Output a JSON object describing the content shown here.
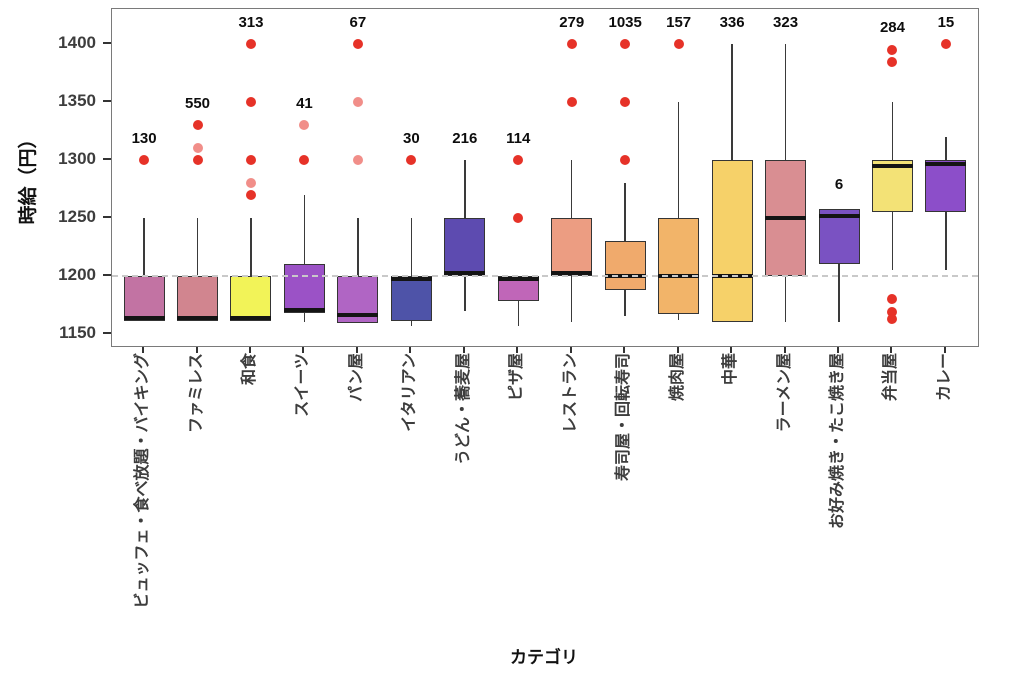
{
  "chart_data": {
    "type": "boxplot",
    "title": "",
    "xlabel": "カテゴリ",
    "ylabel": "時給（円）",
    "y_ticks": [
      1150,
      1200,
      1250,
      1300,
      1350,
      1400
    ],
    "ylim": [
      1140,
      1430
    ],
    "grid": false,
    "legend": "none",
    "reference_line": {
      "value": 1200,
      "style": "dashed",
      "color": "#c9c9c9"
    },
    "outlier_color": "#e63228",
    "box_border_color": "#353535",
    "categories": [
      {
        "label": "ビュッフェ・食べ放題・バイキング",
        "count": 130,
        "color": "#c273a3",
        "q1": 1161,
        "median": 1163,
        "q3": 1200,
        "whisker_low": 1161,
        "whisker_high": 1250,
        "outliers": [
          {
            "value": 1300,
            "light": false
          }
        ],
        "count_label_y": 1314
      },
      {
        "label": "ファミレス",
        "count": 550,
        "color": "#d1858f",
        "q1": 1161,
        "median": 1163,
        "q3": 1200,
        "whisker_low": 1161,
        "whisker_high": 1250,
        "outliers": [
          {
            "value": 1300,
            "light": false
          },
          {
            "value": 1310,
            "light": true
          },
          {
            "value": 1330,
            "light": false
          }
        ],
        "count_label_y": 1344
      },
      {
        "label": "和食",
        "count": 313,
        "color": "#f2f358",
        "q1": 1161,
        "median": 1162,
        "q3": 1200,
        "whisker_low": 1161,
        "whisker_high": 1250,
        "outliers": [
          {
            "value": 1270,
            "light": false
          },
          {
            "value": 1280,
            "light": true
          },
          {
            "value": 1300,
            "light": false
          },
          {
            "value": 1350,
            "light": false
          },
          {
            "value": 1400,
            "light": false
          }
        ],
        "count_label_y": 1414
      },
      {
        "label": "スイーツ",
        "count": 41,
        "color": "#9b52c6",
        "q1": 1168,
        "median": 1170,
        "q3": 1210,
        "whisker_low": 1160,
        "whisker_high": 1270,
        "outliers": [
          {
            "value": 1300,
            "light": false
          },
          {
            "value": 1330,
            "light": true
          }
        ],
        "count_label_y": 1344
      },
      {
        "label": "パン屋",
        "count": 67,
        "color": "#b065c4",
        "q1": 1159,
        "median": 1166,
        "q3": 1200,
        "whisker_low": 1159,
        "whisker_high": 1250,
        "outliers": [
          {
            "value": 1300,
            "light": true
          },
          {
            "value": 1350,
            "light": true
          },
          {
            "value": 1400,
            "light": false
          }
        ],
        "count_label_y": 1414
      },
      {
        "label": "イタリアン",
        "count": 30,
        "color": "#4e53a8",
        "q1": 1161,
        "median": 1198,
        "q3": 1200,
        "whisker_low": 1157,
        "whisker_high": 1250,
        "outliers": [
          {
            "value": 1300,
            "light": false
          }
        ],
        "count_label_y": 1314
      },
      {
        "label": "うどん・蕎麦屋",
        "count": 216,
        "color": "#5d4bb0",
        "q1": 1200,
        "median": 1202,
        "q3": 1250,
        "whisker_low": 1170,
        "whisker_high": 1300,
        "outliers": [],
        "count_label_y": 1314
      },
      {
        "label": "ピザ屋",
        "count": 114,
        "color": "#c066b8",
        "q1": 1178,
        "median": 1198,
        "q3": 1200,
        "whisker_low": 1157,
        "whisker_high": 1200,
        "outliers": [
          {
            "value": 1250,
            "light": false
          },
          {
            "value": 1300,
            "light": false
          }
        ],
        "count_label_y": 1314
      },
      {
        "label": "レストラン",
        "count": 279,
        "color": "#ec9d82",
        "q1": 1200,
        "median": 1202,
        "q3": 1250,
        "whisker_low": 1160,
        "whisker_high": 1300,
        "outliers": [
          {
            "value": 1350,
            "light": false
          },
          {
            "value": 1400,
            "light": false
          }
        ],
        "count_label_y": 1414
      },
      {
        "label": "寿司屋・回転寿司",
        "count": 1035,
        "color": "#f0aa6c",
        "q1": 1188,
        "median": 1200,
        "q3": 1230,
        "whisker_low": 1165,
        "whisker_high": 1280,
        "outliers": [
          {
            "value": 1300,
            "light": false
          },
          {
            "value": 1350,
            "light": false
          },
          {
            "value": 1400,
            "light": false
          }
        ],
        "count_label_y": 1414
      },
      {
        "label": "焼肉屋",
        "count": 157,
        "color": "#f2b469",
        "q1": 1167,
        "median": 1200,
        "q3": 1250,
        "whisker_low": 1162,
        "whisker_high": 1350,
        "outliers": [
          {
            "value": 1400,
            "light": false
          }
        ],
        "count_label_y": 1414
      },
      {
        "label": "中華",
        "count": 336,
        "color": "#f6d169",
        "q1": 1160,
        "median": 1200,
        "q3": 1300,
        "whisker_low": 1160,
        "whisker_high": 1400,
        "outliers": [],
        "count_label_y": 1414
      },
      {
        "label": "ラーメン屋",
        "count": 323,
        "color": "#d98e92",
        "q1": 1200,
        "median": 1250,
        "q3": 1300,
        "whisker_low": 1160,
        "whisker_high": 1400,
        "outliers": [],
        "count_label_y": 1414
      },
      {
        "label": "お好み焼き・たこ焼き屋",
        "count": 6,
        "color": "#7a52c2",
        "q1": 1210,
        "median": 1252,
        "q3": 1258,
        "whisker_low": 1160,
        "whisker_high": 1258,
        "outliers": [],
        "count_label_y": 1274
      },
      {
        "label": "弁当屋",
        "count": 284,
        "color": "#f3e276",
        "q1": 1255,
        "median": 1295,
        "q3": 1300,
        "whisker_low": 1205,
        "whisker_high": 1350,
        "outliers": [
          {
            "value": 1395,
            "light": false
          },
          {
            "value": 1385,
            "light": false
          },
          {
            "value": 1180,
            "light": false
          },
          {
            "value": 1169,
            "light": false
          },
          {
            "value": 1163,
            "light": false
          }
        ],
        "count_label_y": 1410
      },
      {
        "label": "カレー",
        "count": 15,
        "color": "#8c4ec9",
        "q1": 1255,
        "median": 1297,
        "q3": 1300,
        "whisker_low": 1205,
        "whisker_high": 1320,
        "outliers": [
          {
            "value": 1400,
            "light": false
          }
        ],
        "count_label_y": 1414
      }
    ]
  }
}
